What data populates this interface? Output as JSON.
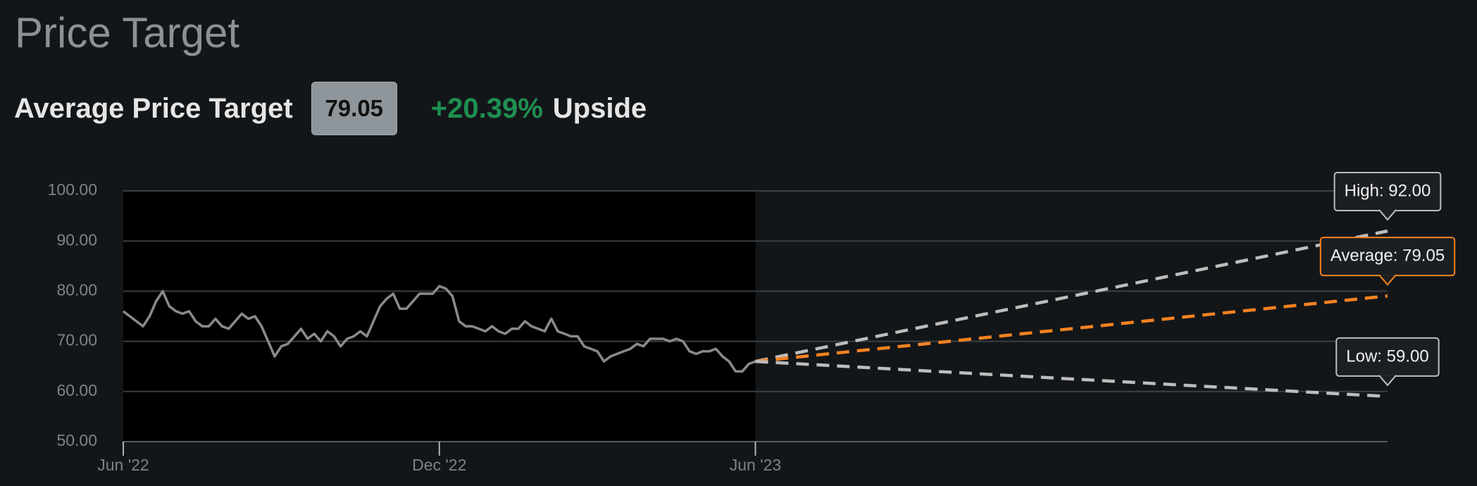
{
  "header": {
    "title": "Price Target",
    "summary_label": "Average Price Target",
    "summary_value": "79.05",
    "upside": "+20.39%",
    "upside_word": "Upside"
  },
  "chart_data": {
    "type": "line",
    "xlim": [
      0,
      24
    ],
    "xticks": [
      {
        "value": 0,
        "label": "Jun '22"
      },
      {
        "value": 6,
        "label": "Dec '22"
      },
      {
        "value": 12,
        "label": "Jun '23"
      }
    ],
    "ylim": [
      50,
      100
    ],
    "yticks": [
      {
        "value": 50,
        "label": "50.00"
      },
      {
        "value": 60,
        "label": "60.00"
      },
      {
        "value": 70,
        "label": "70.00"
      },
      {
        "value": 80,
        "label": "80.00"
      },
      {
        "value": 90,
        "label": "90.00"
      },
      {
        "value": 100,
        "label": "100.00"
      }
    ],
    "grid": true,
    "series": [
      {
        "color": "#8a8a8a",
        "style": "solid",
        "x": [
          0,
          0.125,
          0.25,
          0.375,
          0.5,
          0.625,
          0.75,
          0.875,
          1,
          1.125,
          1.25,
          1.375,
          1.5,
          1.625,
          1.75,
          1.875,
          2,
          2.125,
          2.25,
          2.375,
          2.5,
          2.625,
          2.75,
          2.875,
          3,
          3.125,
          3.25,
          3.375,
          3.5,
          3.625,
          3.75,
          3.875,
          4,
          4.125,
          4.25,
          4.375,
          4.5,
          4.625,
          4.75,
          4.875,
          5,
          5.125,
          5.25,
          5.375,
          5.5,
          5.625,
          5.75,
          5.875,
          6,
          6.125,
          6.25,
          6.375,
          6.5,
          6.625,
          6.75,
          6.875,
          7,
          7.125,
          7.25,
          7.375,
          7.5,
          7.625,
          7.75,
          7.875,
          8,
          8.125,
          8.25,
          8.375,
          8.5,
          8.625,
          8.75,
          8.875,
          9,
          9.125,
          9.25,
          9.375,
          9.5,
          9.625,
          9.75,
          9.875,
          10,
          10.125,
          10.25,
          10.375,
          10.5,
          10.625,
          10.75,
          10.875,
          11,
          11.125,
          11.25,
          11.375,
          11.5,
          11.625,
          11.75,
          11.875,
          12
        ],
        "values": [
          76,
          75,
          74,
          73,
          75,
          78,
          80,
          77,
          76,
          75.5,
          76,
          74,
          73,
          73,
          74.5,
          73,
          72.5,
          74,
          75.5,
          74.5,
          75,
          73,
          70,
          67,
          69,
          69.5,
          71,
          72.5,
          70.5,
          71.5,
          70,
          72,
          71,
          69,
          70.5,
          71,
          72,
          71,
          74,
          77,
          78.5,
          79.5,
          76.5,
          76.5,
          78,
          79.5,
          79.5,
          79.5,
          81,
          80.5,
          79,
          74,
          73,
          73,
          72.5,
          72,
          73,
          72,
          71.5,
          72.5,
          72.5,
          74,
          73,
          72.5,
          72,
          74.5,
          72,
          71.5,
          71,
          71,
          69,
          68.5,
          68,
          66,
          67,
          67.5,
          68,
          68.5,
          69.5,
          69,
          70.5,
          70.5,
          70.5,
          70,
          70.5,
          70,
          68,
          67.5,
          68,
          68,
          68.5,
          67,
          66,
          64,
          64,
          65.5,
          66
        ]
      },
      {
        "color": "#bdbdbd",
        "style": "dashed",
        "x": [
          12,
          24
        ],
        "values": [
          66,
          92
        ],
        "end_label": "High: 92.00"
      },
      {
        "color": "#f58220",
        "style": "dashed",
        "x": [
          12,
          24
        ],
        "values": [
          66,
          79.05
        ],
        "end_label": "Average: 79.05"
      },
      {
        "color": "#bdbdbd",
        "style": "dashed",
        "x": [
          12,
          24
        ],
        "values": [
          66,
          59
        ],
        "end_label": "Low: 59.00"
      }
    ]
  }
}
